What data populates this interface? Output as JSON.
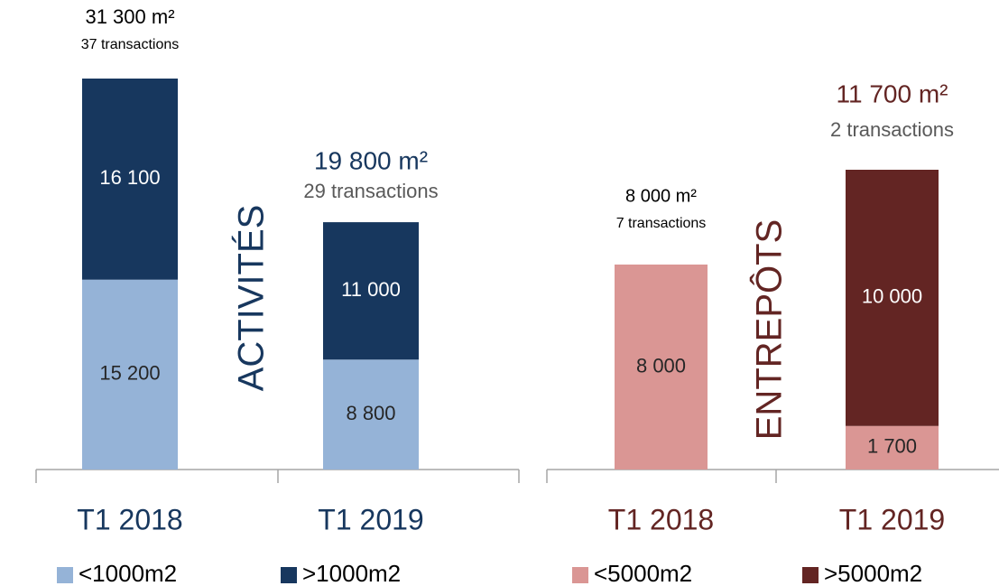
{
  "chart_data": [
    {
      "type": "stacked_bar",
      "axis_label": "ACTIVITÉS",
      "axis_label_color": "#17375e",
      "categories": [
        "T1 2018",
        "T1 2019"
      ],
      "category_color": "#17375e",
      "series": [
        {
          "name": "<1000m2",
          "color": "#95b3d7",
          "label_color": "#262626",
          "values": [
            15200,
            8800
          ],
          "value_labels": [
            "15 200",
            "8 800"
          ]
        },
        {
          "name": ">1000m2",
          "color": "#17375e",
          "label_color": "#ffffff",
          "values": [
            16100,
            11000
          ],
          "value_labels": [
            "16 100",
            "11 000"
          ]
        }
      ],
      "annotations": [
        {
          "total": "31 300 m²",
          "transactions": "37 transactions",
          "color": "#000000",
          "transactions_color": "#000000"
        },
        {
          "total": "19 800 m²",
          "transactions": "29 transactions",
          "color": "#17375e",
          "transactions_color": "#595959"
        }
      ]
    },
    {
      "type": "stacked_bar",
      "axis_label": "ENTREPÔTS",
      "axis_label_color": "#632523",
      "categories": [
        "T1 2018",
        "T1 2019"
      ],
      "category_color": "#632523",
      "series": [
        {
          "name": "<5000m2",
          "color": "#da9694",
          "label_color": "#262626",
          "values": [
            8000,
            1700
          ],
          "value_labels": [
            "8 000",
            "1 700"
          ]
        },
        {
          "name": ">5000m2",
          "color": "#632523",
          "label_color": "#ffffff",
          "values": [
            null,
            10000
          ],
          "value_labels": [
            null,
            "10 000"
          ]
        }
      ],
      "annotations": [
        {
          "total": "8 000 m²",
          "transactions": "7 transactions",
          "color": "#000000",
          "transactions_color": "#000000"
        },
        {
          "total": "11 700 m²",
          "transactions": "2 transactions",
          "color": "#632523",
          "transactions_color": "#595959"
        }
      ]
    }
  ]
}
